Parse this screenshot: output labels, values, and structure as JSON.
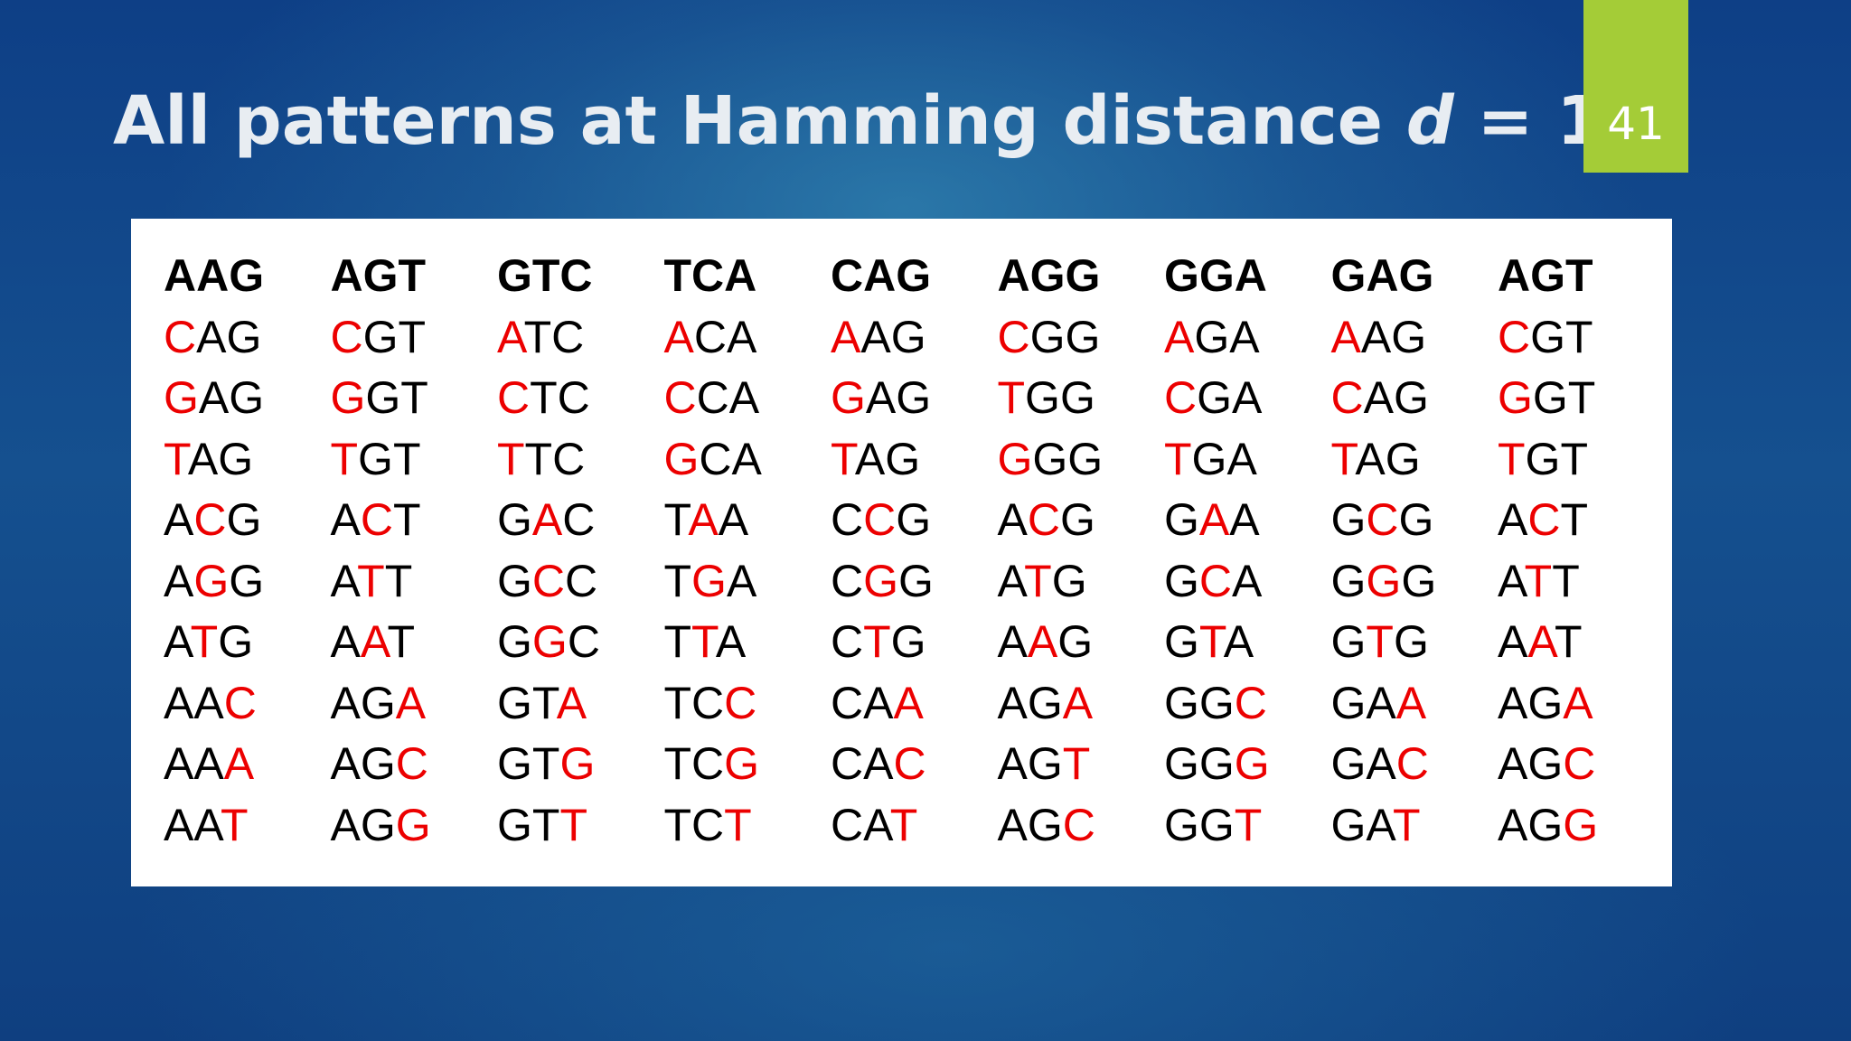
{
  "slide": {
    "title_prefix": "All patterns at Hamming distance ",
    "title_variable": "d",
    "title_suffix": " = 1",
    "number": "41"
  },
  "colors": {
    "mutation": "#ec0000",
    "base": "#000000",
    "number_badge": "#a4cc37"
  },
  "table": {
    "columns": [
      {
        "header": "AAG",
        "neighbors": [
          {
            "before": "",
            "mut": "C",
            "after": "AG"
          },
          {
            "before": "",
            "mut": "G",
            "after": "AG"
          },
          {
            "before": "",
            "mut": "T",
            "after": "AG"
          },
          {
            "before": "A",
            "mut": "C",
            "after": "G"
          },
          {
            "before": "A",
            "mut": "G",
            "after": "G"
          },
          {
            "before": "A",
            "mut": "T",
            "after": "G"
          },
          {
            "before": "AA",
            "mut": "C",
            "after": ""
          },
          {
            "before": "AA",
            "mut": "A",
            "after": ""
          },
          {
            "before": "AA",
            "mut": "T",
            "after": ""
          }
        ]
      },
      {
        "header": "AGT",
        "neighbors": [
          {
            "before": "",
            "mut": "C",
            "after": "GT"
          },
          {
            "before": "",
            "mut": "G",
            "after": "GT"
          },
          {
            "before": "",
            "mut": "T",
            "after": "GT"
          },
          {
            "before": "A",
            "mut": "C",
            "after": "T"
          },
          {
            "before": "A",
            "mut": "T",
            "after": "T"
          },
          {
            "before": "A",
            "mut": "A",
            "after": "T"
          },
          {
            "before": "AG",
            "mut": "A",
            "after": ""
          },
          {
            "before": "AG",
            "mut": "C",
            "after": ""
          },
          {
            "before": "AG",
            "mut": "G",
            "after": ""
          }
        ]
      },
      {
        "header": "GTC",
        "neighbors": [
          {
            "before": "",
            "mut": "A",
            "after": "TC"
          },
          {
            "before": "",
            "mut": "C",
            "after": "TC"
          },
          {
            "before": "",
            "mut": "T",
            "after": "TC"
          },
          {
            "before": "G",
            "mut": "A",
            "after": "C"
          },
          {
            "before": "G",
            "mut": "C",
            "after": "C"
          },
          {
            "before": "G",
            "mut": "G",
            "after": "C"
          },
          {
            "before": "GT",
            "mut": "A",
            "after": ""
          },
          {
            "before": "GT",
            "mut": "G",
            "after": ""
          },
          {
            "before": "GT",
            "mut": "T",
            "after": ""
          }
        ]
      },
      {
        "header": "TCA",
        "neighbors": [
          {
            "before": "",
            "mut": "A",
            "after": "CA"
          },
          {
            "before": "",
            "mut": "C",
            "after": "CA"
          },
          {
            "before": "",
            "mut": "G",
            "after": "CA"
          },
          {
            "before": "T",
            "mut": "A",
            "after": "A"
          },
          {
            "before": "T",
            "mut": "G",
            "after": "A"
          },
          {
            "before": "T",
            "mut": "T",
            "after": "A"
          },
          {
            "before": "TC",
            "mut": "C",
            "after": ""
          },
          {
            "before": "TC",
            "mut": "G",
            "after": ""
          },
          {
            "before": "TC",
            "mut": "T",
            "after": ""
          }
        ]
      },
      {
        "header": "CAG",
        "neighbors": [
          {
            "before": "",
            "mut": "A",
            "after": "AG"
          },
          {
            "before": "",
            "mut": "G",
            "after": "AG"
          },
          {
            "before": "",
            "mut": "T",
            "after": "AG"
          },
          {
            "before": "C",
            "mut": "C",
            "after": "G"
          },
          {
            "before": "C",
            "mut": "G",
            "after": "G"
          },
          {
            "before": "C",
            "mut": "T",
            "after": "G"
          },
          {
            "before": "CA",
            "mut": "A",
            "after": ""
          },
          {
            "before": "CA",
            "mut": "C",
            "after": ""
          },
          {
            "before": "CA",
            "mut": "T",
            "after": ""
          }
        ]
      },
      {
        "header": "AGG",
        "neighbors": [
          {
            "before": "",
            "mut": "C",
            "after": "GG"
          },
          {
            "before": "",
            "mut": "T",
            "after": "GG"
          },
          {
            "before": "",
            "mut": "G",
            "after": "GG"
          },
          {
            "before": "A",
            "mut": "C",
            "after": "G"
          },
          {
            "before": "A",
            "mut": "T",
            "after": "G"
          },
          {
            "before": "A",
            "mut": "A",
            "after": "G"
          },
          {
            "before": "AG",
            "mut": "A",
            "after": ""
          },
          {
            "before": "AG",
            "mut": "T",
            "after": ""
          },
          {
            "before": "AG",
            "mut": "C",
            "after": ""
          }
        ]
      },
      {
        "header": "GGA",
        "neighbors": [
          {
            "before": "",
            "mut": "A",
            "after": "GA"
          },
          {
            "before": "",
            "mut": "C",
            "after": "GA"
          },
          {
            "before": "",
            "mut": "T",
            "after": "GA"
          },
          {
            "before": "G",
            "mut": "A",
            "after": "A"
          },
          {
            "before": "G",
            "mut": "C",
            "after": "A"
          },
          {
            "before": "G",
            "mut": "T",
            "after": "A"
          },
          {
            "before": "GG",
            "mut": "C",
            "after": ""
          },
          {
            "before": "GG",
            "mut": "G",
            "after": ""
          },
          {
            "before": "GG",
            "mut": "T",
            "after": ""
          }
        ]
      },
      {
        "header": "GAG",
        "neighbors": [
          {
            "before": "",
            "mut": "A",
            "after": "AG"
          },
          {
            "before": "",
            "mut": "C",
            "after": "AG"
          },
          {
            "before": "",
            "mut": "T",
            "after": "AG"
          },
          {
            "before": "G",
            "mut": "C",
            "after": "G"
          },
          {
            "before": "G",
            "mut": "G",
            "after": "G"
          },
          {
            "before": "G",
            "mut": "T",
            "after": "G"
          },
          {
            "before": "GA",
            "mut": "A",
            "after": ""
          },
          {
            "before": "GA",
            "mut": "C",
            "after": ""
          },
          {
            "before": "GA",
            "mut": "T",
            "after": ""
          }
        ]
      },
      {
        "header": "AGT",
        "neighbors": [
          {
            "before": "",
            "mut": "C",
            "after": "GT"
          },
          {
            "before": "",
            "mut": "G",
            "after": "GT"
          },
          {
            "before": "",
            "mut": "T",
            "after": "GT"
          },
          {
            "before": "A",
            "mut": "C",
            "after": "T"
          },
          {
            "before": "A",
            "mut": "T",
            "after": "T"
          },
          {
            "before": "A",
            "mut": "A",
            "after": "T"
          },
          {
            "before": "AG",
            "mut": "A",
            "after": ""
          },
          {
            "before": "AG",
            "mut": "C",
            "after": ""
          },
          {
            "before": "AG",
            "mut": "G",
            "after": ""
          }
        ]
      }
    ]
  }
}
